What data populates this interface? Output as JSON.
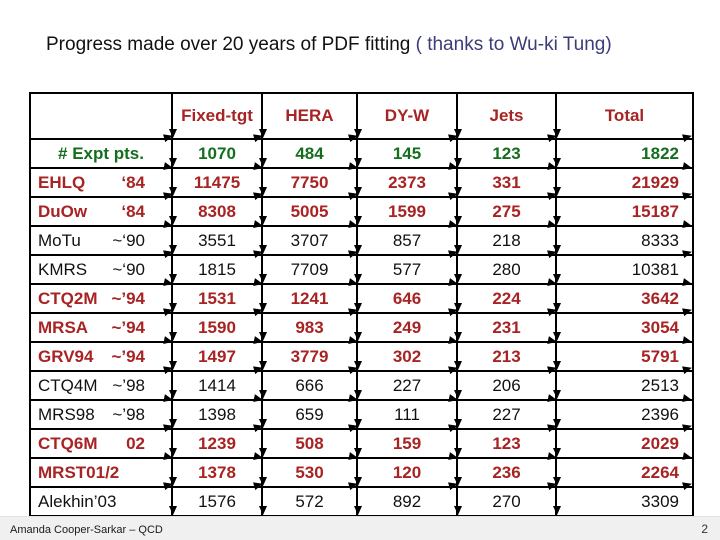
{
  "title": {
    "main": "Progress made over 20 years of PDF fitting",
    "accent": " ( thanks to Wu-ki Tung)"
  },
  "table": {
    "headers": [
      "",
      "Fixed-tgt",
      "HERA",
      "DY-W",
      "Jets",
      "Total"
    ],
    "rows": [
      {
        "label": "# Expt pts.",
        "year": "",
        "align": "center",
        "color": "green",
        "values": [
          "1070",
          "484",
          "145",
          "123",
          "1822"
        ]
      },
      {
        "label": "EHLQ",
        "year": "‘84",
        "color": "red",
        "values": [
          "11475",
          "7750",
          "2373",
          "331",
          "21929"
        ]
      },
      {
        "label": "DuOw",
        "year": "‘84",
        "color": "red",
        "values": [
          "8308",
          "5005",
          "1599",
          "275",
          "15187"
        ]
      },
      {
        "label": "MoTu",
        "year": "~‘90",
        "color": "black",
        "values": [
          "3551",
          "3707",
          "857",
          "218",
          "8333"
        ]
      },
      {
        "label": "KMRS",
        "year": "~‘90",
        "color": "black",
        "values": [
          "1815",
          "7709",
          "577",
          "280",
          "10381"
        ]
      },
      {
        "label": "CTQ2M",
        "year": "~’94",
        "color": "red",
        "values": [
          "1531",
          "1241",
          "646",
          "224",
          "3642"
        ]
      },
      {
        "label": "MRSA",
        "year": "~’94",
        "color": "red",
        "values": [
          "1590",
          "983",
          "249",
          "231",
          "3054"
        ]
      },
      {
        "label": "GRV94",
        "year": "~’94",
        "color": "red",
        "values": [
          "1497",
          "3779",
          "302",
          "213",
          "5791"
        ]
      },
      {
        "label": "CTQ4M",
        "year": "~’98",
        "color": "black",
        "values": [
          "1414",
          "666",
          "227",
          "206",
          "2513"
        ]
      },
      {
        "label": "MRS98",
        "year": "~’98",
        "color": "black",
        "values": [
          "1398",
          "659",
          "111",
          "227",
          "2396"
        ]
      },
      {
        "label": "CTQ6M",
        "year": "02",
        "color": "red",
        "values": [
          "1239",
          "508",
          "159",
          "123",
          "2029"
        ]
      },
      {
        "label": "MRST01/2",
        "year": "",
        "color": "red",
        "values": [
          "1378",
          "530",
          "120",
          "236",
          "2264"
        ]
      },
      {
        "label": "Alekhin’03",
        "year": "",
        "color": "black",
        "values": [
          "1576",
          "572",
          "892",
          "270",
          "3309"
        ]
      }
    ]
  },
  "colors": {
    "red": "#a82323",
    "green": "#146e1e",
    "black": "#111111",
    "accent": "#3c3c78",
    "header": "#a82323"
  },
  "footer": {
    "author": "Amanda Cooper-Sarkar – QCD",
    "page": "2"
  }
}
